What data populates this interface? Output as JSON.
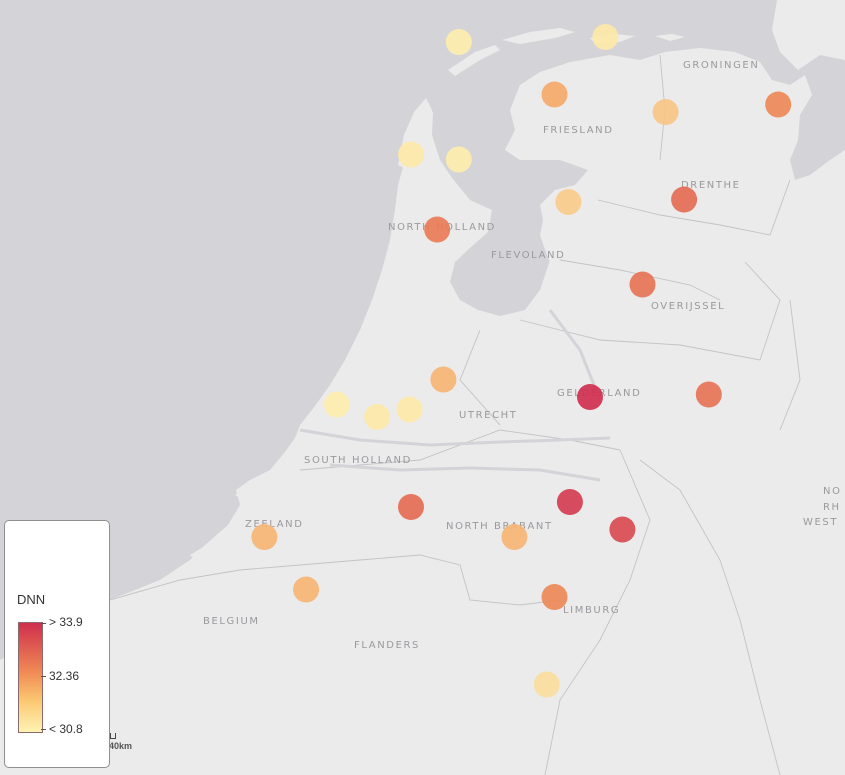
{
  "map": {
    "region_labels": {
      "groningen": "GRONINGEN",
      "friesland": "FRIESLAND",
      "drenthe": "DRENTHE",
      "north_holland": "NORTH HOLLAND",
      "flevoland": "FLEVOLAND",
      "overijssel": "OVERIJSSEL",
      "gelderland": "GELDERLAND",
      "utrecht": "UTRECHT",
      "south_holland": "SOUTH HOLLAND",
      "zeeland": "ZEELAND",
      "north_brabant": "NORTH BRABANT",
      "limburg": "LIMBURG",
      "belgium": "BELGIUM",
      "flanders": "FLANDERS",
      "nrw_1": "NO",
      "nrw_2": "RH",
      "nrw_3": "WEST"
    },
    "scale_label": "40km",
    "colors": {
      "water": "#d4d4d8",
      "land": "#ebebeb",
      "high": "#cf2f4e",
      "mid": "#f39a5a",
      "low": "#fef4b4"
    }
  },
  "legend": {
    "title": "DNN",
    "max_label": "> 33.9",
    "mid_label": "32.36",
    "min_label": "< 30.8",
    "min": 30.8,
    "max": 33.9
  },
  "markers": [
    {
      "lon": 5.1,
      "lat": 53.41,
      "value": 30.9
    },
    {
      "lon": 6.05,
      "lat": 53.43,
      "value": 31.0
    },
    {
      "lon": 5.72,
      "lat": 53.2,
      "value": 32.1
    },
    {
      "lon": 6.44,
      "lat": 53.13,
      "value": 31.6
    },
    {
      "lon": 7.17,
      "lat": 53.16,
      "value": 32.6
    },
    {
      "lon": 4.79,
      "lat": 52.96,
      "value": 31.0
    },
    {
      "lon": 5.1,
      "lat": 52.94,
      "value": 30.9
    },
    {
      "lon": 5.81,
      "lat": 52.77,
      "value": 31.5
    },
    {
      "lon": 6.56,
      "lat": 52.78,
      "value": 33.0
    },
    {
      "lon": 4.96,
      "lat": 52.66,
      "value": 32.8
    },
    {
      "lon": 6.29,
      "lat": 52.44,
      "value": 32.9
    },
    {
      "lon": 5.0,
      "lat": 52.06,
      "value": 31.9
    },
    {
      "lon": 5.95,
      "lat": 51.99,
      "value": 33.9
    },
    {
      "lon": 6.72,
      "lat": 52.0,
      "value": 32.9
    },
    {
      "lon": 4.31,
      "lat": 51.96,
      "value": 30.9
    },
    {
      "lon": 4.57,
      "lat": 51.91,
      "value": 31.0
    },
    {
      "lon": 4.78,
      "lat": 51.94,
      "value": 31.0
    },
    {
      "lon": 5.82,
      "lat": 51.57,
      "value": 33.7
    },
    {
      "lon": 4.79,
      "lat": 51.55,
      "value": 33.0
    },
    {
      "lon": 6.16,
      "lat": 51.46,
      "value": 33.5
    },
    {
      "lon": 3.84,
      "lat": 51.43,
      "value": 31.9
    },
    {
      "lon": 5.46,
      "lat": 51.43,
      "value": 31.9
    },
    {
      "lon": 4.11,
      "lat": 51.22,
      "value": 31.9
    },
    {
      "lon": 5.72,
      "lat": 51.19,
      "value": 32.6
    },
    {
      "lon": 5.67,
      "lat": 50.84,
      "value": 31.2
    }
  ]
}
